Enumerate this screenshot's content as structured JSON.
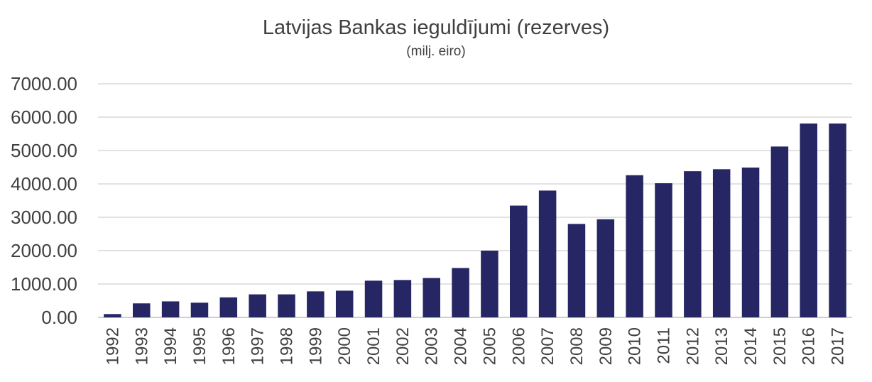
{
  "chart_data": {
    "type": "bar",
    "title": "Latvijas Bankas ieguldījumi (rezerves)",
    "subtitle": "(milj. eiro)",
    "categories": [
      "1992",
      "1993",
      "1994",
      "1995",
      "1996",
      "1997",
      "1998",
      "1999",
      "2000",
      "2001",
      "2002",
      "2003",
      "2004",
      "2005",
      "2006",
      "2007",
      "2008",
      "2009",
      "2010",
      "2011",
      "2012",
      "2013",
      "2014",
      "2015",
      "2016",
      "2017"
    ],
    "values": [
      100,
      420,
      480,
      440,
      600,
      690,
      690,
      780,
      800,
      1100,
      1120,
      1180,
      1480,
      2000,
      3350,
      3800,
      2800,
      2940,
      4260,
      4020,
      4380,
      4440,
      4490,
      5120,
      5810,
      5810
    ],
    "ylim": [
      0,
      7000
    ],
    "yticks": [
      "0.00",
      "1000.00",
      "2000.00",
      "3000.00",
      "4000.00",
      "5000.00",
      "6000.00",
      "7000.00"
    ],
    "grid": true,
    "bar_color": "#262664",
    "grid_color": "#d9d9d9"
  }
}
